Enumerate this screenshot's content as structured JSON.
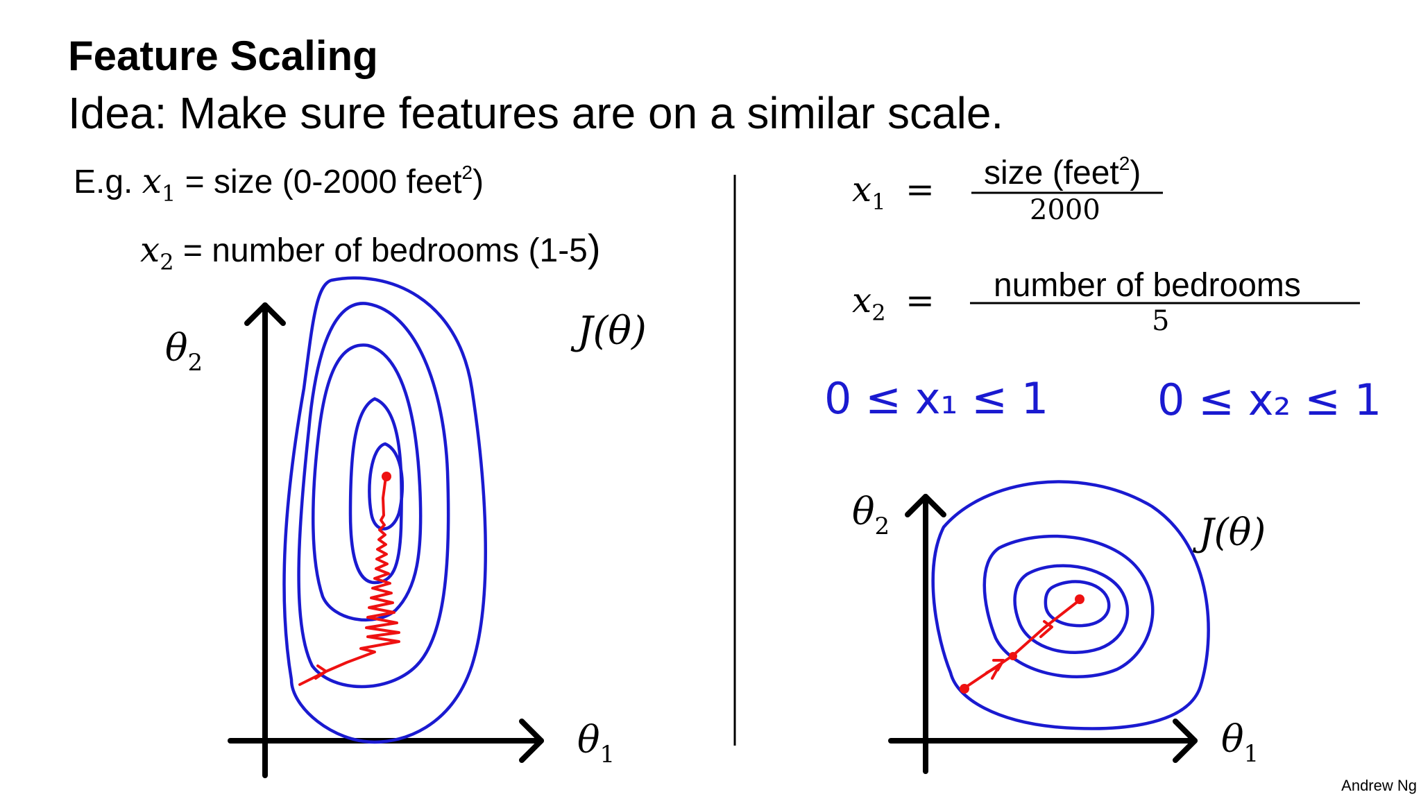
{
  "slide": {
    "title": "Feature Scaling",
    "idea": "Idea: Make sure features are on a similar scale.",
    "footer": "Andrew Ng"
  },
  "example": {
    "eg_label": "E.g.",
    "x1_symbol": "x",
    "x1_sub": "1",
    "x1_text": "= size (0-2000 feet",
    "x1_sup": "2",
    "x1_close": ")",
    "x2_symbol": "x",
    "x2_sub": "2",
    "x2_text": "= number of bedrooms (1-5",
    "x2_close": ")"
  },
  "left_plot": {
    "y_axis_label": "θ",
    "y_axis_sub": "2",
    "x_axis_label": "θ",
    "x_axis_sub": "1",
    "cost_label": "J(θ)"
  },
  "right_formulas": {
    "x1_symbol": "x",
    "x1_sub": "1",
    "equals": "=",
    "x1_numerator": "size (feet",
    "x1_numerator_sup": "2",
    "x1_numerator_close": ")",
    "x1_denominator": "2000",
    "x2_symbol": "x",
    "x2_sub": "2",
    "x2_numerator": "number of bedrooms",
    "x2_denominator": "5",
    "range1": "0 ≤ x₁ ≤ 1",
    "range2": "0 ≤ x₂ ≤ 1"
  },
  "right_plot": {
    "y_axis_label": "θ",
    "y_axis_sub": "2",
    "x_axis_label": "θ",
    "x_axis_sub": "1",
    "cost_label": "J(θ)"
  },
  "colors": {
    "contour": "#1a1ad0",
    "path": "#ee1111",
    "axis": "#000000",
    "handwriting": "#1a1ad0"
  }
}
